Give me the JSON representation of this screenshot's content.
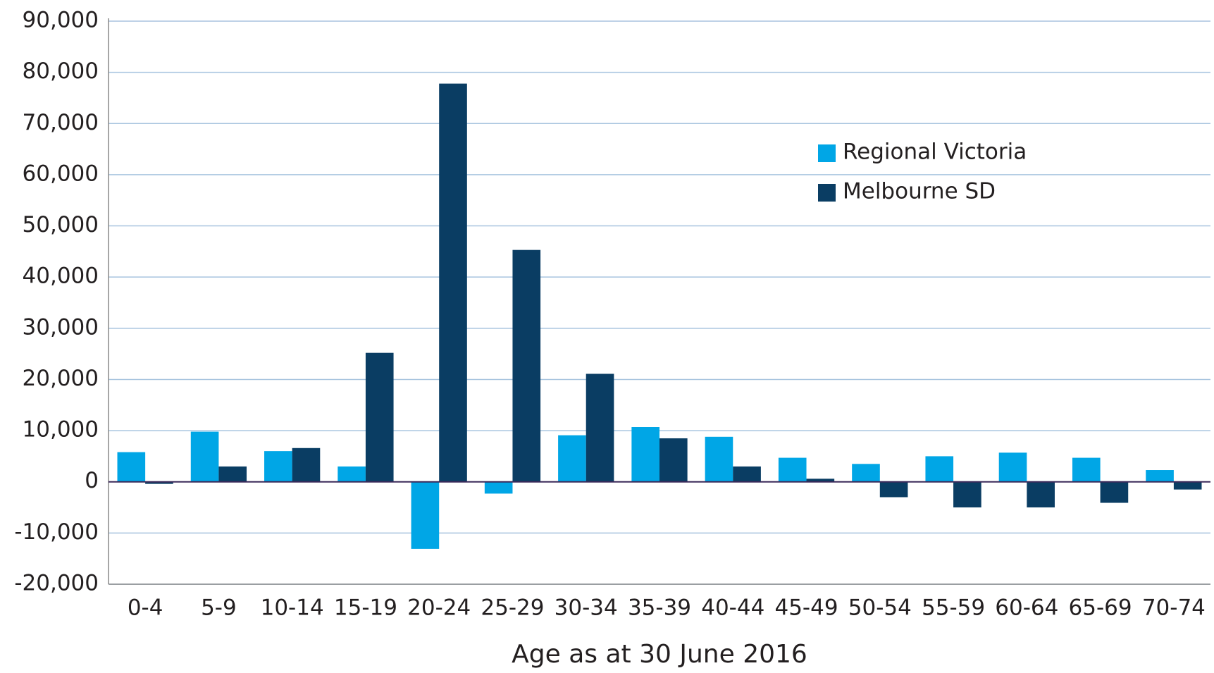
{
  "chart_data": {
    "type": "bar",
    "x_label": "Age as at 30 June 2016",
    "categories": [
      "0-4",
      "5-9",
      "10-14",
      "15-19",
      "20-24",
      "25-29",
      "30-34",
      "35-39",
      "40-44",
      "45-49",
      "50-54",
      "55-59",
      "60-64",
      "65-69",
      "70-74"
    ],
    "series": [
      {
        "name": "Regional Victoria",
        "color": "#00a6e6",
        "values": [
          5800,
          9800,
          6000,
          3000,
          -13100,
          -2300,
          9100,
          10700,
          8800,
          4700,
          3500,
          5000,
          5700,
          4700,
          2300
        ]
      },
      {
        "name": "Melbourne SD",
        "color": "#0a3d63",
        "values": [
          -400,
          3000,
          6600,
          25200,
          77800,
          45300,
          21100,
          8500,
          3000,
          600,
          -3000,
          -5000,
          -5000,
          -4100,
          -1500
        ]
      }
    ],
    "ylim": [
      -20000,
      90000
    ],
    "yticks": [
      {
        "value": -20000,
        "label": "-20,000"
      },
      {
        "value": -10000,
        "label": "-10,000"
      },
      0,
      {
        "value": 10000,
        "label": "10,000"
      },
      {
        "value": 20000,
        "label": "20,000"
      },
      {
        "value": 30000,
        "label": "30,000"
      },
      {
        "value": 40000,
        "label": "40,000"
      },
      {
        "value": 50000,
        "label": "50,000"
      },
      {
        "value": 60000,
        "label": "60,000"
      },
      {
        "value": 70000,
        "label": "70,000"
      },
      {
        "value": 80000,
        "label": "80,000"
      },
      {
        "value": 90000,
        "label": "90,000"
      }
    ],
    "grid": true,
    "legend": "upper right"
  }
}
